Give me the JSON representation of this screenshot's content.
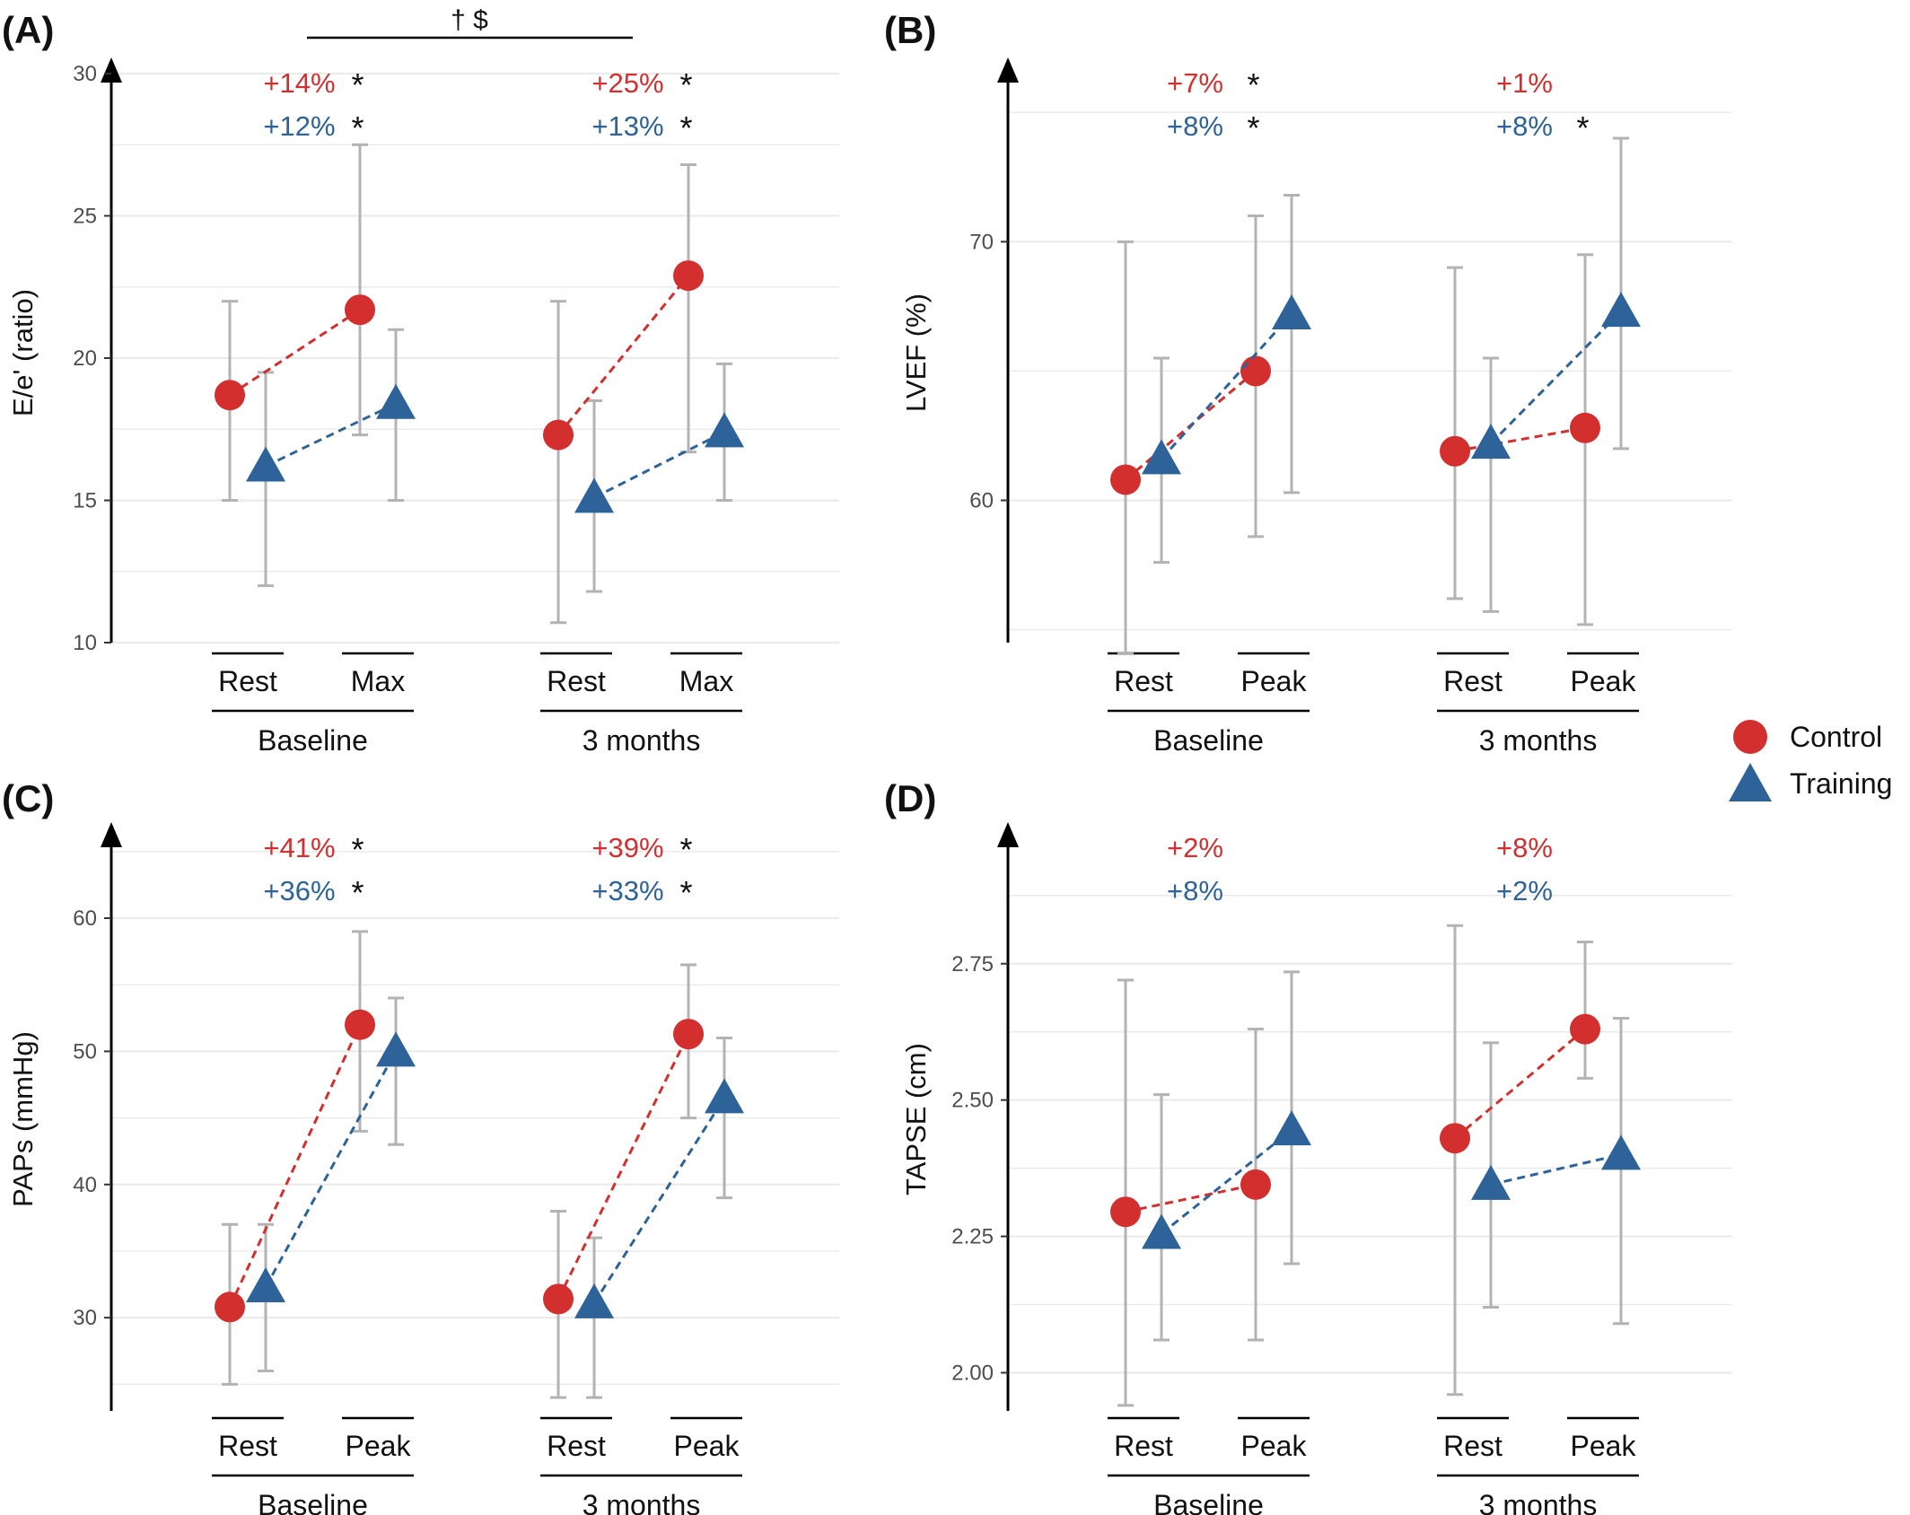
{
  "colors": {
    "control": "#d32f2f",
    "training": "#2d6399",
    "errorbar": "#b3b3b3",
    "grid": "#ebebeb",
    "axis": "#000000"
  },
  "legend": [
    {
      "label": "Control",
      "shape": "circle"
    },
    {
      "label": "Training",
      "shape": "triangle"
    }
  ],
  "chart_data": [
    {
      "type": "scatter",
      "panel": "(A)",
      "ylabel": "E/e' (ratio)",
      "ylim": [
        10,
        30
      ],
      "yticks": [
        "10",
        "15",
        "20",
        "25",
        "30"
      ],
      "grid": true,
      "groups": [
        {
          "label": "Baseline",
          "categories": [
            "Rest",
            "Max"
          ]
        },
        {
          "label": "3 months",
          "categories": [
            "Rest",
            "Max"
          ]
        }
      ],
      "series": [
        {
          "name": "Control",
          "points": [
            {
              "group": 0,
              "cat": 0,
              "y": 18.7,
              "lo": 15,
              "hi": 22
            },
            {
              "group": 0,
              "cat": 1,
              "y": 21.7,
              "lo": 17.3,
              "hi": 27.5
            },
            {
              "group": 1,
              "cat": 0,
              "y": 17.3,
              "lo": 10.7,
              "hi": 22
            },
            {
              "group": 1,
              "cat": 1,
              "y": 22.9,
              "lo": 16.7,
              "hi": 26.8
            }
          ]
        },
        {
          "name": "Training",
          "points": [
            {
              "group": 0,
              "cat": 0,
              "y": 16.2,
              "lo": 12,
              "hi": 19.5
            },
            {
              "group": 0,
              "cat": 1,
              "y": 18.4,
              "lo": 15,
              "hi": 21
            },
            {
              "group": 1,
              "cat": 0,
              "y": 15.1,
              "lo": 11.8,
              "hi": 18.5
            },
            {
              "group": 1,
              "cat": 1,
              "y": 17.4,
              "lo": 15,
              "hi": 19.8
            }
          ]
        }
      ],
      "annotations": [
        {
          "group": 0,
          "control": "+14%",
          "control_star": "*",
          "training": "+12%",
          "training_star": "*"
        },
        {
          "group": 1,
          "control": "+25%",
          "control_star": "*",
          "training": "+13%",
          "training_star": "*"
        }
      ],
      "significance": "† $"
    },
    {
      "type": "scatter",
      "panel": "(B)",
      "ylabel": "LVEF (%)",
      "ylim": [
        54.5,
        76.5
      ],
      "yticks": [
        "60",
        "70"
      ],
      "grid": true,
      "groups": [
        {
          "label": "Baseline",
          "categories": [
            "Rest",
            "Peak"
          ]
        },
        {
          "label": "3 months",
          "categories": [
            "Rest",
            "Peak"
          ]
        }
      ],
      "series": [
        {
          "name": "Control",
          "points": [
            {
              "group": 0,
              "cat": 0,
              "y": 60.8,
              "lo": 54.1,
              "hi": 70
            },
            {
              "group": 0,
              "cat": 1,
              "y": 65,
              "lo": 58.6,
              "hi": 71
            },
            {
              "group": 1,
              "cat": 0,
              "y": 61.9,
              "lo": 56.2,
              "hi": 69
            },
            {
              "group": 1,
              "cat": 1,
              "y": 62.8,
              "lo": 55.2,
              "hi": 69.5
            }
          ]
        },
        {
          "name": "Training",
          "points": [
            {
              "group": 0,
              "cat": 0,
              "y": 61.6,
              "lo": 57.6,
              "hi": 65.5
            },
            {
              "group": 0,
              "cat": 1,
              "y": 67.2,
              "lo": 60.3,
              "hi": 71.8
            },
            {
              "group": 1,
              "cat": 0,
              "y": 62.2,
              "lo": 55.7,
              "hi": 65.5
            },
            {
              "group": 1,
              "cat": 1,
              "y": 67.3,
              "lo": 62,
              "hi": 74
            }
          ]
        }
      ],
      "annotations": [
        {
          "group": 0,
          "control": "+7%",
          "control_star": "*",
          "training": "+8%",
          "training_star": "*"
        },
        {
          "group": 1,
          "control": "+1%",
          "control_star": "",
          "training": "+8%",
          "training_star": "*"
        }
      ],
      "significance": ""
    },
    {
      "type": "scatter",
      "panel": "(C)",
      "ylabel": "PAPs (mmHg)",
      "ylim": [
        23,
        66
      ],
      "yticks": [
        "30",
        "40",
        "50",
        "60"
      ],
      "grid": true,
      "groups": [
        {
          "label": "Baseline",
          "categories": [
            "Rest",
            "Peak"
          ]
        },
        {
          "label": "3 months",
          "categories": [
            "Rest",
            "Peak"
          ]
        }
      ],
      "series": [
        {
          "name": "Control",
          "points": [
            {
              "group": 0,
              "cat": 0,
              "y": 30.8,
              "lo": 25,
              "hi": 37
            },
            {
              "group": 0,
              "cat": 1,
              "y": 52,
              "lo": 44,
              "hi": 59
            },
            {
              "group": 1,
              "cat": 0,
              "y": 31.4,
              "lo": 24,
              "hi": 38
            },
            {
              "group": 1,
              "cat": 1,
              "y": 51.3,
              "lo": 45,
              "hi": 56.5
            }
          ]
        },
        {
          "name": "Training",
          "points": [
            {
              "group": 0,
              "cat": 0,
              "y": 32.3,
              "lo": 26,
              "hi": 37
            },
            {
              "group": 0,
              "cat": 1,
              "y": 50,
              "lo": 43,
              "hi": 54
            },
            {
              "group": 1,
              "cat": 0,
              "y": 31.1,
              "lo": 24,
              "hi": 36
            },
            {
              "group": 1,
              "cat": 1,
              "y": 46.5,
              "lo": 39,
              "hi": 51
            }
          ]
        }
      ],
      "annotations": [
        {
          "group": 0,
          "control": "+41%",
          "control_star": "*",
          "training": "+36%",
          "training_star": "*"
        },
        {
          "group": 1,
          "control": "+39%",
          "control_star": "*",
          "training": "+33%",
          "training_star": "*"
        }
      ],
      "significance": ""
    },
    {
      "type": "scatter",
      "panel": "(D)",
      "ylabel": "TAPSE (cm)",
      "ylim": [
        1.93,
        2.98
      ],
      "yticks": [
        "2.00",
        "2.25",
        "2.50",
        "2.75"
      ],
      "grid": true,
      "groups": [
        {
          "label": "Baseline",
          "categories": [
            "Rest",
            "Peak"
          ]
        },
        {
          "label": "3 months",
          "categories": [
            "Rest",
            "Peak"
          ]
        }
      ],
      "series": [
        {
          "name": "Control",
          "points": [
            {
              "group": 0,
              "cat": 0,
              "y": 2.295,
              "lo": 1.94,
              "hi": 2.72
            },
            {
              "group": 0,
              "cat": 1,
              "y": 2.345,
              "lo": 2.06,
              "hi": 2.63
            },
            {
              "group": 1,
              "cat": 0,
              "y": 2.43,
              "lo": 1.96,
              "hi": 2.82
            },
            {
              "group": 1,
              "cat": 1,
              "y": 2.63,
              "lo": 2.54,
              "hi": 2.79
            }
          ]
        },
        {
          "name": "Training",
          "points": [
            {
              "group": 0,
              "cat": 0,
              "y": 2.255,
              "lo": 2.06,
              "hi": 2.51
            },
            {
              "group": 0,
              "cat": 1,
              "y": 2.445,
              "lo": 2.2,
              "hi": 2.735
            },
            {
              "group": 1,
              "cat": 0,
              "y": 2.345,
              "lo": 2.12,
              "hi": 2.605
            },
            {
              "group": 1,
              "cat": 1,
              "y": 2.4,
              "lo": 2.09,
              "hi": 2.65
            }
          ]
        }
      ],
      "annotations": [
        {
          "group": 0,
          "control": "+2%",
          "control_star": "",
          "training": "+8%",
          "training_star": ""
        },
        {
          "group": 1,
          "control": "+8%",
          "control_star": "",
          "training": "+2%",
          "training_star": ""
        }
      ],
      "significance": ""
    }
  ]
}
